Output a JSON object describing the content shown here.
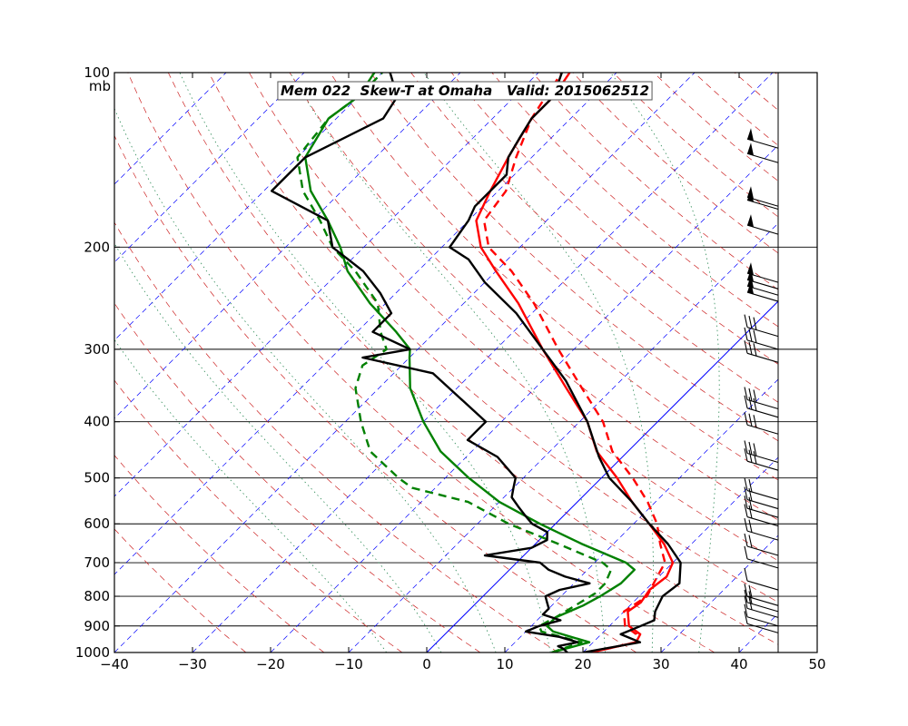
{
  "chart_data": {
    "type": "line",
    "title": "Mem 022  Skew-T at Omaha   Valid: 2015062512",
    "xlabel": "",
    "ylabel": "",
    "pressure_unit_label": "mb",
    "x_ticks": [
      -40,
      -30,
      -20,
      -10,
      0,
      10,
      20,
      30,
      40,
      50
    ],
    "pressure_ticks": [
      100,
      200,
      300,
      400,
      500,
      600,
      700,
      800,
      900,
      1000
    ],
    "xlim": [
      -40,
      50
    ],
    "ylim_pressure": [
      1000,
      100
    ],
    "y_scale": "log",
    "skewed_isotherms": [
      -100,
      -90,
      -80,
      -70,
      -60,
      -50,
      -40,
      -30,
      -20,
      -10,
      0,
      10,
      20,
      30,
      40,
      50
    ],
    "highlighted_isotherm": 0,
    "dry_adiabats_theta_K": [
      250,
      260,
      270,
      280,
      290,
      300,
      310,
      320,
      330,
      340,
      350,
      360,
      370,
      380,
      390,
      400,
      410,
      420,
      430,
      440,
      450,
      460,
      470,
      480
    ],
    "moist_adiabats_thetaw_K": [
      268,
      275,
      282,
      289,
      296,
      302,
      308
    ],
    "colors": {
      "temperature": "#ff0000",
      "dewpoint": "#008000",
      "control": "#000000",
      "isotherm": "#0000ff",
      "dry_adiabat": "#cc2222",
      "moist_adiabat": "#2e8b57",
      "isobar": "#000000"
    },
    "series": [
      {
        "name": "Temperature",
        "color": "#ff0000",
        "style": "solid",
        "points": [
          [
            1000,
            21
          ],
          [
            960,
            25.5
          ],
          [
            930,
            25
          ],
          [
            900,
            22.5
          ],
          [
            850,
            20.5
          ],
          [
            820,
            21
          ],
          [
            780,
            20.5
          ],
          [
            740,
            21
          ],
          [
            700,
            20
          ],
          [
            650,
            16.5
          ],
          [
            600,
            12
          ],
          [
            550,
            7
          ],
          [
            500,
            2
          ],
          [
            450,
            -4
          ],
          [
            400,
            -9
          ],
          [
            350,
            -16
          ],
          [
            300,
            -24
          ],
          [
            250,
            -33
          ],
          [
            220,
            -40
          ],
          [
            200,
            -45
          ],
          [
            180,
            -49
          ],
          [
            160,
            -51
          ],
          [
            140,
            -53
          ],
          [
            120,
            -55
          ],
          [
            110,
            -55
          ],
          [
            100,
            -56
          ]
        ]
      },
      {
        "name": "Temperature (previous)",
        "color": "#ff0000",
        "style": "dashed",
        "points": [
          [
            1000,
            21
          ],
          [
            960,
            25.5
          ],
          [
            930,
            24.5
          ],
          [
            900,
            22
          ],
          [
            850,
            20
          ],
          [
            800,
            21
          ],
          [
            750,
            20
          ],
          [
            700,
            19
          ],
          [
            650,
            16
          ],
          [
            600,
            13
          ],
          [
            550,
            9
          ],
          [
            500,
            4
          ],
          [
            450,
            -2
          ],
          [
            400,
            -7
          ],
          [
            350,
            -14
          ],
          [
            300,
            -22
          ],
          [
            250,
            -31
          ],
          [
            220,
            -38
          ],
          [
            200,
            -44
          ],
          [
            180,
            -48
          ],
          [
            160,
            -49
          ],
          [
            140,
            -52
          ],
          [
            120,
            -55
          ],
          [
            110,
            -56
          ],
          [
            100,
            -57
          ]
        ]
      },
      {
        "name": "Dewpoint",
        "color": "#008000",
        "style": "solid",
        "points": [
          [
            1000,
            16
          ],
          [
            960,
            19.5
          ],
          [
            920,
            13.5
          ],
          [
            900,
            12
          ],
          [
            870,
            12
          ],
          [
            830,
            14
          ],
          [
            800,
            15
          ],
          [
            760,
            16
          ],
          [
            720,
            16
          ],
          [
            700,
            14
          ],
          [
            650,
            6
          ],
          [
            600,
            -2
          ],
          [
            550,
            -10
          ],
          [
            500,
            -17
          ],
          [
            450,
            -24
          ],
          [
            400,
            -30
          ],
          [
            350,
            -36
          ],
          [
            310,
            -40
          ],
          [
            300,
            -41
          ],
          [
            280,
            -45
          ],
          [
            250,
            -52
          ],
          [
            220,
            -59
          ],
          [
            200,
            -63
          ],
          [
            180,
            -68
          ],
          [
            160,
            -74
          ],
          [
            140,
            -79
          ],
          [
            120,
            -81
          ],
          [
            110,
            -80
          ],
          [
            100,
            -81
          ]
        ]
      },
      {
        "name": "Dewpoint (previous)",
        "color": "#008000",
        "style": "dashed",
        "points": [
          [
            1000,
            16
          ],
          [
            960,
            18.5
          ],
          [
            920,
            12
          ],
          [
            900,
            11
          ],
          [
            870,
            12
          ],
          [
            830,
            13
          ],
          [
            790,
            14
          ],
          [
            760,
            14
          ],
          [
            720,
            13
          ],
          [
            700,
            11
          ],
          [
            650,
            3
          ],
          [
            600,
            -6
          ],
          [
            550,
            -14
          ],
          [
            520,
            -23
          ],
          [
            500,
            -26
          ],
          [
            450,
            -33
          ],
          [
            400,
            -38
          ],
          [
            350,
            -43
          ],
          [
            320,
            -45
          ],
          [
            300,
            -44
          ],
          [
            280,
            -47
          ],
          [
            250,
            -51
          ],
          [
            220,
            -58
          ],
          [
            200,
            -64
          ],
          [
            180,
            -69
          ],
          [
            160,
            -75
          ],
          [
            140,
            -80
          ],
          [
            120,
            -81
          ],
          [
            110,
            -80
          ],
          [
            100,
            -80
          ]
        ]
      },
      {
        "name": "Control",
        "color": "#000000",
        "style": "solid",
        "points": [
          [
            1000,
            18
          ],
          [
            985,
            17
          ],
          [
            975,
            16
          ],
          [
            960,
            18
          ],
          [
            940,
            15
          ],
          [
            920,
            10
          ],
          [
            900,
            11
          ],
          [
            880,
            13
          ],
          [
            860,
            10
          ],
          [
            840,
            10
          ],
          [
            820,
            9
          ],
          [
            800,
            8
          ],
          [
            780,
            9
          ],
          [
            760,
            12
          ],
          [
            740,
            8
          ],
          [
            720,
            5
          ],
          [
            700,
            3
          ],
          [
            680,
            -5
          ],
          [
            660,
            0
          ],
          [
            640,
            1
          ],
          [
            620,
            0
          ],
          [
            600,
            -3
          ],
          [
            580,
            -5
          ],
          [
            560,
            -7
          ],
          [
            540,
            -9
          ],
          [
            520,
            -10
          ],
          [
            500,
            -11
          ],
          [
            460,
            -16
          ],
          [
            430,
            -22
          ],
          [
            400,
            -22
          ],
          [
            330,
            -35
          ],
          [
            310,
            -46
          ],
          [
            300,
            -41
          ],
          [
            280,
            -48
          ],
          [
            260,
            -48
          ],
          [
            240,
            -52
          ],
          [
            220,
            -57
          ],
          [
            200,
            -64
          ],
          [
            180,
            -68
          ],
          [
            160,
            -79
          ],
          [
            140,
            -79
          ],
          [
            120,
            -74
          ],
          [
            110,
            -75
          ],
          [
            100,
            -79
          ]
        ]
      },
      {
        "name": "Control temperature",
        "color": "#000000",
        "style": "solid",
        "points": [
          [
            1000,
            20
          ],
          [
            960,
            26
          ],
          [
            930,
            22.5
          ],
          [
            900,
            24
          ],
          [
            880,
            25
          ],
          [
            850,
            24
          ],
          [
            800,
            23
          ],
          [
            760,
            23.5
          ],
          [
            700,
            21
          ],
          [
            650,
            17
          ],
          [
            600,
            12
          ],
          [
            550,
            7
          ],
          [
            500,
            1
          ],
          [
            460,
            -3
          ],
          [
            400,
            -9
          ],
          [
            340,
            -17
          ],
          [
            300,
            -24
          ],
          [
            260,
            -32
          ],
          [
            230,
            -40
          ],
          [
            210,
            -45
          ],
          [
            200,
            -49
          ],
          [
            180,
            -50
          ],
          [
            170,
            -51
          ],
          [
            150,
            -51
          ],
          [
            140,
            -53
          ],
          [
            130,
            -54
          ],
          [
            120,
            -55
          ],
          [
            110,
            -55
          ],
          [
            100,
            -57
          ]
        ]
      }
    ],
    "wind_barbs": [
      {
        "pressure": 135,
        "kind": "pennant",
        "count": 1
      },
      {
        "pressure": 143,
        "kind": "pennant",
        "count": 1
      },
      {
        "pressure": 170,
        "kind": "pennant",
        "count": 1
      },
      {
        "pressure": 172,
        "kind": "pennant",
        "count": 1
      },
      {
        "pressure": 190,
        "kind": "pennant",
        "count": 1
      },
      {
        "pressure": 230,
        "kind": "pennant",
        "count": 1
      },
      {
        "pressure": 236,
        "kind": "pennant",
        "count": 1
      },
      {
        "pressure": 242,
        "kind": "pennant",
        "count": 1
      },
      {
        "pressure": 248,
        "kind": "pennant",
        "count": 1
      },
      {
        "pressure": 285,
        "kind": "barbs",
        "count": 3
      },
      {
        "pressure": 300,
        "kind": "barbs",
        "count": 3
      },
      {
        "pressure": 316,
        "kind": "barbs",
        "count": 3
      },
      {
        "pressure": 380,
        "kind": "barbs",
        "count": 3
      },
      {
        "pressure": 393,
        "kind": "barbs",
        "count": 3
      },
      {
        "pressure": 420,
        "kind": "barbs",
        "count": 3
      },
      {
        "pressure": 470,
        "kind": "barbs",
        "count": 3
      },
      {
        "pressure": 485,
        "kind": "barbs",
        "count": 3
      },
      {
        "pressure": 545,
        "kind": "barbs",
        "count": 2
      },
      {
        "pressure": 565,
        "kind": "barbs",
        "count": 2
      },
      {
        "pressure": 585,
        "kind": "barbs",
        "count": 2
      },
      {
        "pressure": 605,
        "kind": "barbs",
        "count": 2
      },
      {
        "pressure": 640,
        "kind": "barbs",
        "count": 2
      },
      {
        "pressure": 680,
        "kind": "barbs",
        "count": 2
      },
      {
        "pressure": 715,
        "kind": "barbs",
        "count": 1
      },
      {
        "pressure": 780,
        "kind": "barbs",
        "count": 1
      },
      {
        "pressure": 830,
        "kind": "barbs",
        "count": 2
      },
      {
        "pressure": 850,
        "kind": "barbs",
        "count": 2
      },
      {
        "pressure": 870,
        "kind": "barbs",
        "count": 2
      },
      {
        "pressure": 900,
        "kind": "barbs",
        "count": 1
      },
      {
        "pressure": 925,
        "kind": "barbs",
        "count": 1
      }
    ]
  }
}
